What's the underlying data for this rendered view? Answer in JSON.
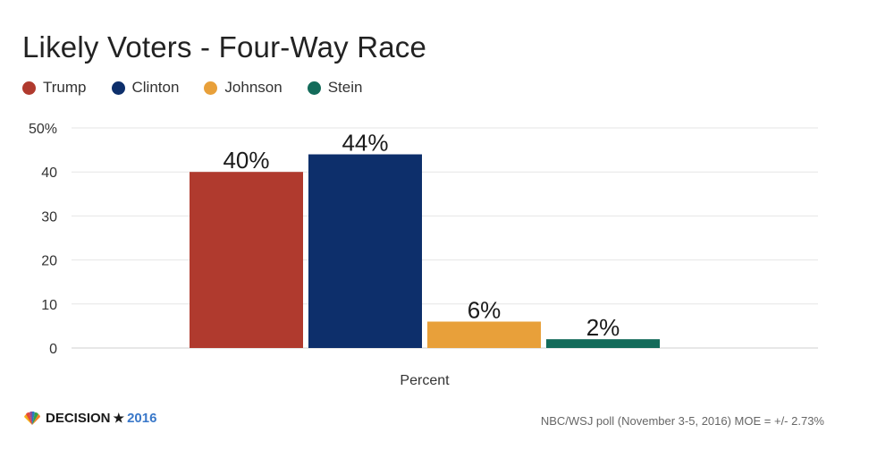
{
  "header": {
    "title": "Likely Voters - Four-Way Race"
  },
  "legend": [
    {
      "label": "Trump",
      "color": "#b03a2e"
    },
    {
      "label": "Clinton",
      "color": "#0d2f6b"
    },
    {
      "label": "Johnson",
      "color": "#e8a03a"
    },
    {
      "label": "Stein",
      "color": "#136b5a"
    }
  ],
  "footer": {
    "logo_text": "DECISION",
    "logo_star": "★",
    "logo_year": "2016",
    "source": "NBC/WSJ poll (November 3-5, 2016) MOE = +/- 2.73%"
  },
  "chart_data": {
    "type": "bar",
    "title": "Likely Voters - Four-Way Race",
    "xlabel": "Percent",
    "ylabel": "",
    "categories": [
      "Percent"
    ],
    "series": [
      {
        "name": "Trump",
        "values": [
          40
        ],
        "label": "40%",
        "color": "#b03a2e"
      },
      {
        "name": "Clinton",
        "values": [
          44
        ],
        "label": "44%",
        "color": "#0d2f6b"
      },
      {
        "name": "Johnson",
        "values": [
          6
        ],
        "label": "6%",
        "color": "#e8a03a"
      },
      {
        "name": "Stein",
        "values": [
          2
        ],
        "label": "2%",
        "color": "#136b5a"
      }
    ],
    "ylim": [
      0,
      50
    ],
    "yticks": [
      0,
      10,
      20,
      30,
      40,
      50
    ],
    "ytick_labels": [
      "0",
      "10",
      "20",
      "30",
      "40",
      "50%"
    ],
    "grid": true,
    "legend_position": "top-left"
  }
}
